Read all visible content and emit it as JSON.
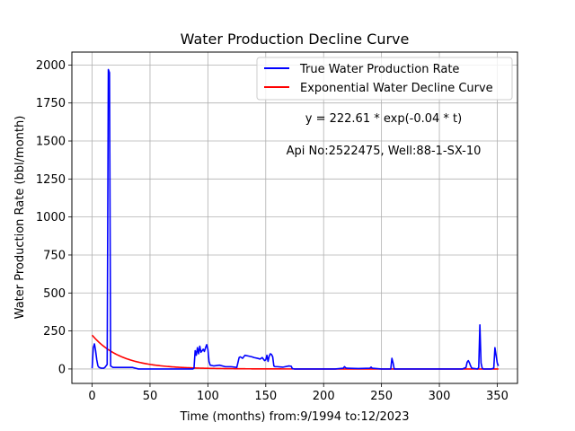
{
  "chart_data": {
    "type": "line",
    "title": "Water Production Decline Curve",
    "xlabel": "Time (months) from:9/1994 to:12/2023",
    "ylabel": "Water Production Rate (bbl/month)",
    "xlim": [
      -17.5,
      367.5
    ],
    "ylim": [
      -95,
      2085
    ],
    "xticks": [
      0,
      50,
      100,
      150,
      200,
      250,
      300,
      350
    ],
    "yticks": [
      0,
      250,
      500,
      750,
      1000,
      1250,
      1500,
      1750,
      2000
    ],
    "grid": true,
    "legend_position": "top-right",
    "annotations": [
      "y = 222.61 * exp(-0.04 * t)",
      "Api No:2522475, Well:88-1-SX-10"
    ],
    "series": [
      {
        "name": "True Water Production Rate",
        "color": "#0000ff",
        "x": [
          0,
          1,
          2,
          3,
          4,
          5,
          6,
          7,
          8,
          9,
          10,
          11,
          12,
          13,
          14,
          15,
          16,
          17,
          18,
          20,
          25,
          30,
          35,
          40,
          45,
          50,
          60,
          70,
          80,
          87,
          88,
          89,
          90,
          91,
          92,
          93,
          94,
          95,
          96,
          97,
          98,
          99,
          100,
          101,
          102,
          105,
          110,
          115,
          120,
          125,
          127,
          128,
          130,
          132,
          135,
          138,
          140,
          143,
          145,
          147,
          149,
          150,
          151,
          152,
          153,
          154,
          155,
          156,
          157,
          158,
          160,
          165,
          170,
          172,
          173,
          175,
          180,
          190,
          200,
          210,
          217,
          218,
          219,
          220,
          230,
          240,
          241,
          242,
          250,
          258,
          259,
          260,
          261,
          270,
          280,
          290,
          300,
          310,
          320,
          323,
          324,
          325,
          326,
          327,
          328,
          330,
          333,
          334,
          335,
          336,
          337,
          338,
          340,
          345,
          347,
          348,
          349,
          350,
          351
        ],
        "y": [
          5,
          140,
          165,
          120,
          60,
          20,
          10,
          8,
          5,
          5,
          5,
          10,
          20,
          30,
          1970,
          1950,
          20,
          15,
          10,
          10,
          10,
          10,
          10,
          0,
          0,
          0,
          0,
          0,
          0,
          0,
          5,
          120,
          90,
          140,
          100,
          150,
          110,
          120,
          130,
          115,
          140,
          160,
          130,
          50,
          25,
          20,
          25,
          15,
          15,
          10,
          75,
          80,
          70,
          90,
          85,
          80,
          75,
          70,
          65,
          75,
          55,
          60,
          90,
          50,
          85,
          100,
          95,
          80,
          20,
          15,
          15,
          12,
          20,
          18,
          2,
          0,
          0,
          0,
          0,
          0,
          5,
          15,
          8,
          5,
          3,
          5,
          12,
          5,
          0,
          0,
          70,
          40,
          0,
          0,
          0,
          0,
          0,
          0,
          0,
          10,
          45,
          55,
          40,
          20,
          5,
          3,
          0,
          10,
          290,
          40,
          5,
          0,
          0,
          0,
          5,
          140,
          90,
          40,
          20
        ]
      },
      {
        "name": "Exponential Water Decline Curve",
        "color": "#ff0000",
        "equation": "y = 222.61 * exp(-0.04 * t)",
        "a": 222.61,
        "b": -0.04,
        "x_range": [
          0,
          351
        ]
      }
    ]
  }
}
